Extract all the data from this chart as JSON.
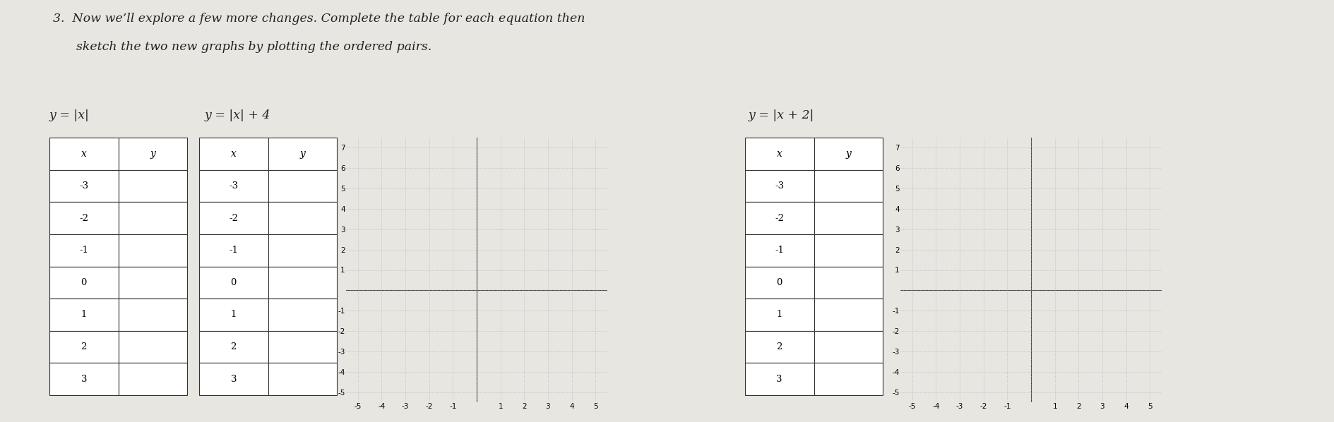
{
  "bg_color": "#e8e6e1",
  "title_line1": "3.  Now we’ll explore a few more changes. Complete the table for each equation then",
  "title_line2": "      sketch the two new graphs by plotting the ordered pairs.",
  "eq1": "y = |x|",
  "eq2": "y = |x| + 4",
  "eq3": "y = |x + 2|",
  "table_x_values": [
    -3,
    -2,
    -1,
    0,
    1,
    2,
    3
  ],
  "grid_xlim": [
    -5.5,
    5.5
  ],
  "grid_ylim": [
    -5.5,
    7.5
  ],
  "grid_xticks": [
    -5,
    -4,
    -3,
    -2,
    -1,
    0,
    1,
    2,
    3,
    4,
    5
  ],
  "grid_yticks": [
    -5,
    -4,
    -3,
    -2,
    -1,
    0,
    1,
    2,
    3,
    4,
    5,
    6,
    7
  ]
}
